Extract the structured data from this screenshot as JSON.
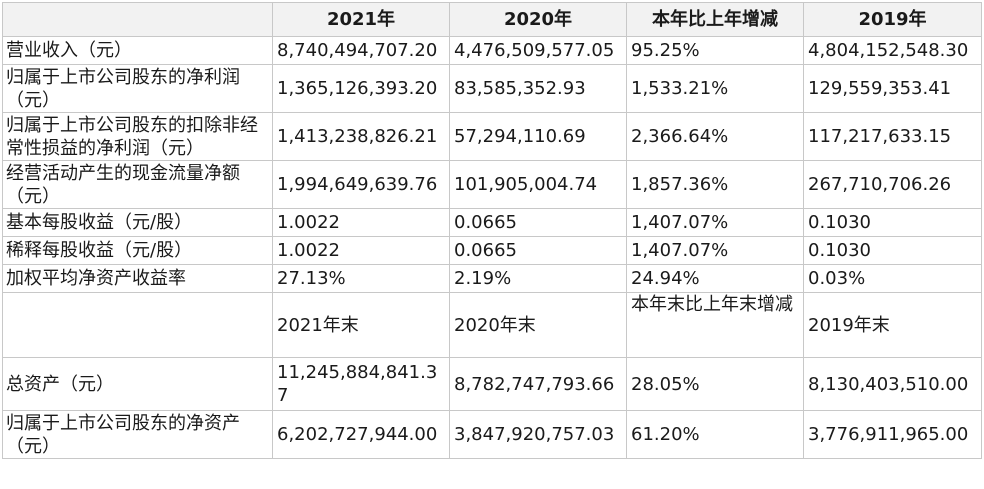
{
  "header": [
    "",
    "2021年",
    "2020年",
    "本年比上年增减",
    "2019年"
  ],
  "rows": [
    [
      "营业收入（元）",
      "8,740,494,707.20",
      "4,476,509,577.05",
      "95.25%",
      "4,804,152,548.30"
    ],
    [
      "归属于上市公司股东的净利润（元）",
      "1,365,126,393.20",
      "83,585,352.93",
      "1,533.21%",
      "129,559,353.41"
    ],
    [
      "归属于上市公司股东的扣除非经 常性损益的净利润（元）",
      "1,413,238,826.21",
      "57,294,110.69",
      "2,366.64%",
      "117,217,633.15"
    ],
    [
      "经营活动产生的现金流量净额（元）",
      "1,994,649,639.76",
      "101,905,004.74",
      "1,857.36%",
      "267,710,706.26"
    ],
    [
      "基本每股收益（元/股）",
      "1.0022",
      "0.0665",
      "1,407.07%",
      "0.1030"
    ],
    [
      "稀释每股收益（元/股）",
      "1.0022",
      "0.0665",
      "1,407.07%",
      "0.1030"
    ],
    [
      "加权平均净资产收益率",
      "27.13%",
      "2.19%",
      "24.94%",
      "0.03%"
    ],
    [
      "",
      "2021年末",
      "2020年末",
      "本年末比上年末增减",
      "2019年末"
    ],
    [
      "总资产（元）",
      "11,245,884,841.37",
      "8,782,747,793.66",
      "28.05%",
      "8,130,403,510.00"
    ],
    [
      "归属于上市公司股东的净资产（元）",
      "6,202,727,944.00",
      "3,847,920,757.03",
      "61.20%",
      "3,776,911,965.00"
    ]
  ]
}
